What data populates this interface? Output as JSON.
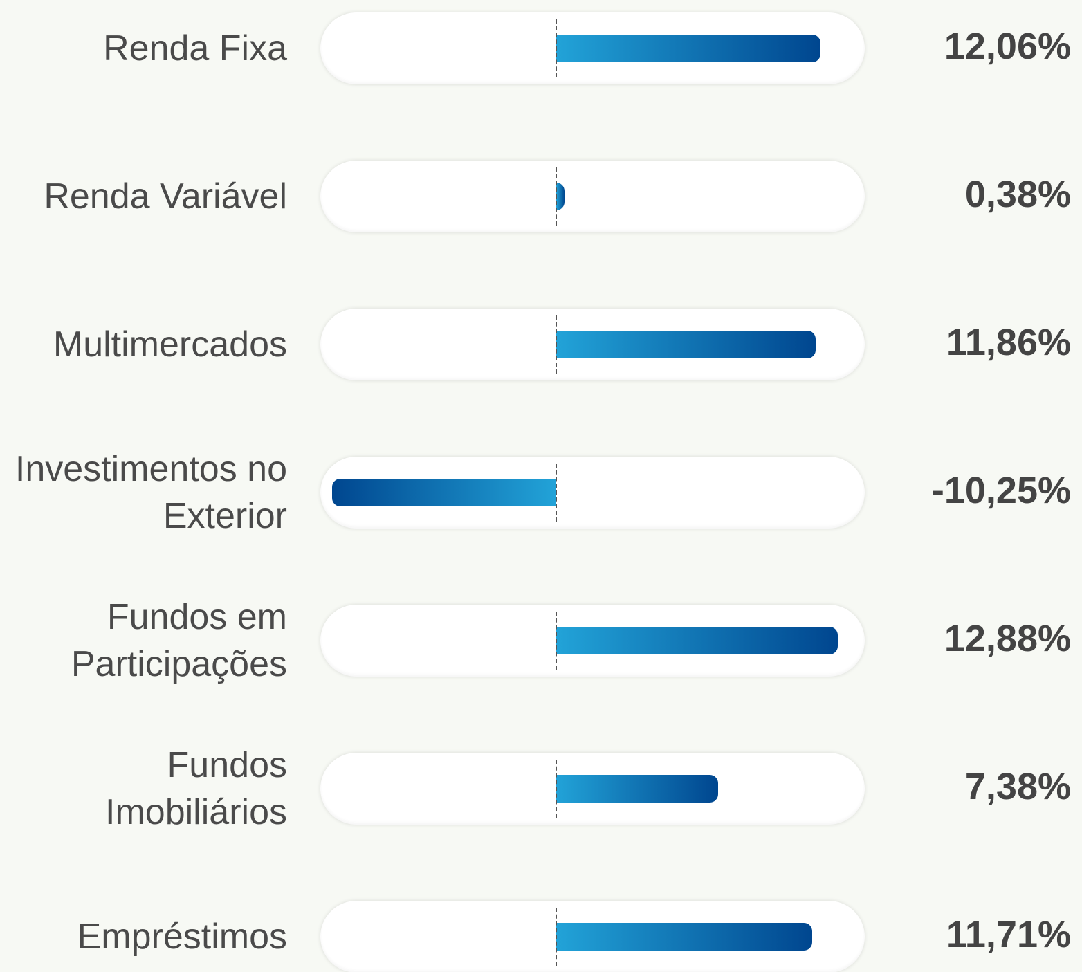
{
  "chart_data": {
    "type": "bar",
    "orientation": "horizontal",
    "categories": [
      "Renda Fixa",
      "Renda Variável",
      "Multimercados",
      "Investimentos no Exterior",
      "Fundos em Participações",
      "Fundos Imobiliários",
      "Empréstimos"
    ],
    "values": [
      12.06,
      0.38,
      11.86,
      -10.25,
      12.88,
      7.38,
      11.71
    ],
    "value_labels": [
      "12,06%",
      "0,38%",
      "11,86%",
      "-10,25%",
      "12,88%",
      "7,38%",
      "11,71%"
    ],
    "colors": [
      "#22a3d8",
      "#00468f"
    ],
    "xlim": [
      -10.8,
      14.1
    ]
  }
}
